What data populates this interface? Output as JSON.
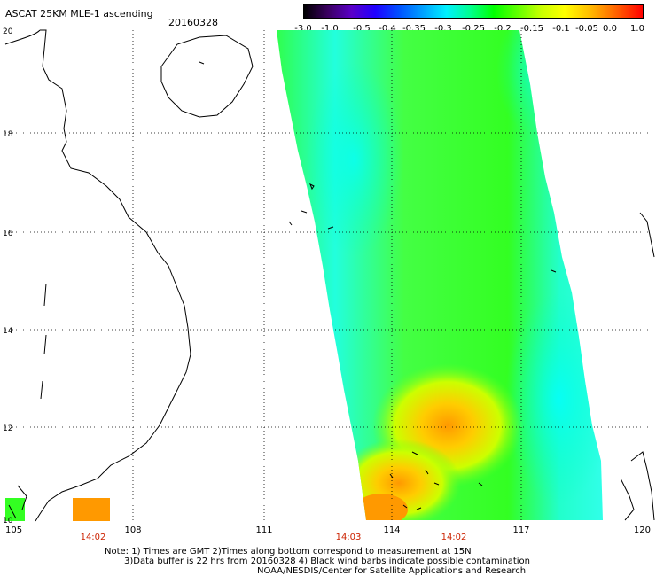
{
  "title": "ASCAT 25KM MLE-1 ascending",
  "date": "20160328",
  "colorbar": {
    "labels": [
      "-3.0",
      "-1.0",
      "-0.5",
      "-0.4",
      "-0.35",
      "-0.3",
      "-0.25",
      "-0.2",
      "-0.15",
      "-0.1",
      "-0.05",
      "0.0",
      "1.0"
    ]
  },
  "axes": {
    "lon_labels": [
      "105",
      "108",
      "111",
      "114",
      "117",
      "120"
    ],
    "lat_labels": [
      "20",
      "18",
      "16",
      "14",
      "12",
      "10"
    ]
  },
  "pass_times": [
    "14:02",
    "14:03",
    "14:02"
  ],
  "notes": {
    "line1": "Note: 1) Times are GMT 2)Times along bottom correspond to measurement at 15N",
    "line2": "3)Data buffer is 22 hrs from 20160328 4) Black wind barbs indicate possible contamination",
    "line3": "NOAA/NESDIS/Center for Satellite Applications and Research"
  },
  "colors": {
    "swath_green": "#33ff22",
    "swath_cyan": "#22ffe0",
    "swath_yellow": "#ccff00",
    "swath_orange": "#ff9900"
  }
}
